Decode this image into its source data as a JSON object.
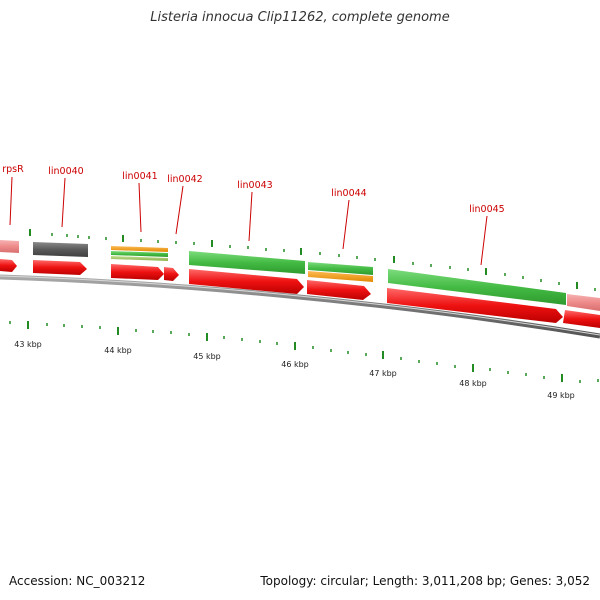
{
  "title": "Listeria innocua Clip11262, complete genome",
  "footer": {
    "accession": "Accession: NC_003212",
    "summary": "Topology: circular; Length: 3,011,208 bp; Genes: 3,052"
  },
  "colors": {
    "label": "#cc0000",
    "cds": "#ee1111",
    "gene_green": "#44bb44",
    "gene_gray": "#5a5a5a",
    "gene_pink": "#ee8a8a",
    "gene_orange": "#f0960a",
    "gene_olive": "#9cc25a",
    "backbone": "#777777",
    "tick": "#228b22"
  },
  "genes": [
    {
      "name": "rpsR"
    },
    {
      "name": "lin0040"
    },
    {
      "name": "lin0041"
    },
    {
      "name": "lin0042"
    },
    {
      "name": "lin0043"
    },
    {
      "name": "lin0044"
    },
    {
      "name": "lin0045"
    }
  ],
  "scale_labels": [
    "43 kbp",
    "44 kbp",
    "45 kbp",
    "46 kbp",
    "47 kbp",
    "48 kbp",
    "49 kbp"
  ]
}
